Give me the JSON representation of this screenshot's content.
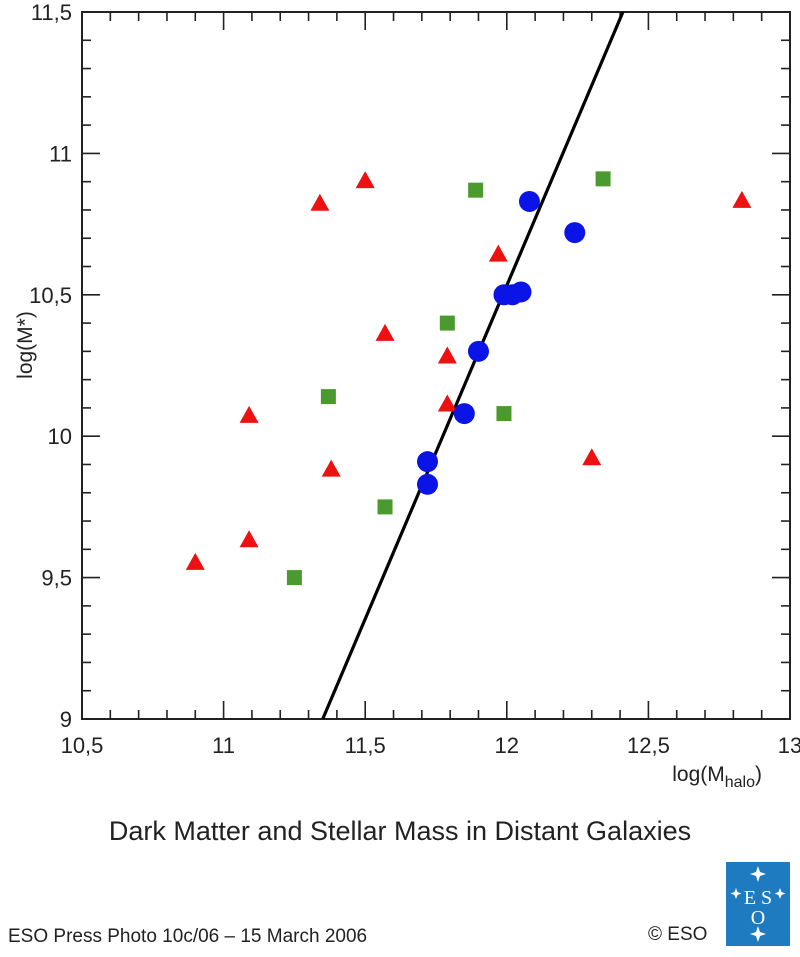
{
  "caption": "Dark Matter and Stellar Mass in Distant Galaxies",
  "credit": "ESO Press Photo 10c/06 – 15 March 2006",
  "copyright": "© ESO",
  "logo": {
    "text": "ESO",
    "color": "#1f7bc0"
  },
  "chart_data": {
    "type": "scatter",
    "title": "",
    "xlabel": "log(M",
    "xlabel_sub": "halo",
    "xlabel_end": ")",
    "ylabel": "log(M*)",
    "xlim": [
      10.5,
      13
    ],
    "ylim": [
      9,
      11.5
    ],
    "x_ticks": [
      {
        "value": 10.5,
        "label": "10,5"
      },
      {
        "value": 11,
        "label": "11"
      },
      {
        "value": 11.5,
        "label": "11,5"
      },
      {
        "value": 12,
        "label": "12"
      },
      {
        "value": 12.5,
        "label": "12,5"
      },
      {
        "value": 13,
        "label": "13"
      }
    ],
    "y_ticks": [
      {
        "value": 9,
        "label": "9"
      },
      {
        "value": 9.5,
        "label": "9,5"
      },
      {
        "value": 10,
        "label": "10"
      },
      {
        "value": 10.5,
        "label": "10,5"
      },
      {
        "value": 11,
        "label": "11"
      },
      {
        "value": 11.5,
        "label": "11,5"
      }
    ],
    "minor_step": 0.1,
    "grid": false,
    "series": [
      {
        "marker": "triangle",
        "color": "#ee1111",
        "points": [
          [
            10.9,
            9.55
          ],
          [
            11.09,
            9.63
          ],
          [
            11.09,
            10.07
          ],
          [
            11.34,
            10.82
          ],
          [
            11.38,
            9.88
          ],
          [
            11.5,
            10.9
          ],
          [
            11.57,
            10.36
          ],
          [
            11.79,
            10.28
          ],
          [
            11.79,
            10.11
          ],
          [
            11.97,
            10.64
          ],
          [
            12.3,
            9.92
          ],
          [
            12.83,
            10.83
          ]
        ]
      },
      {
        "marker": "square",
        "color": "#4a9a30",
        "points": [
          [
            11.25,
            9.5
          ],
          [
            11.37,
            10.14
          ],
          [
            11.57,
            9.75
          ],
          [
            11.79,
            10.4
          ],
          [
            11.89,
            10.87
          ],
          [
            11.99,
            10.08
          ],
          [
            12.34,
            10.91
          ]
        ]
      },
      {
        "marker": "circle",
        "color": "#0a14e6",
        "points": [
          [
            11.72,
            9.83
          ],
          [
            11.72,
            9.91
          ],
          [
            11.85,
            10.08
          ],
          [
            11.9,
            10.3
          ],
          [
            11.99,
            10.5
          ],
          [
            12.02,
            10.5
          ],
          [
            12.05,
            10.51
          ],
          [
            12.08,
            10.83
          ],
          [
            12.24,
            10.72
          ]
        ]
      }
    ],
    "lines": [
      {
        "color": "#000000",
        "points": [
          [
            11.35,
            9.0
          ],
          [
            12.41,
            11.5
          ]
        ]
      }
    ]
  }
}
